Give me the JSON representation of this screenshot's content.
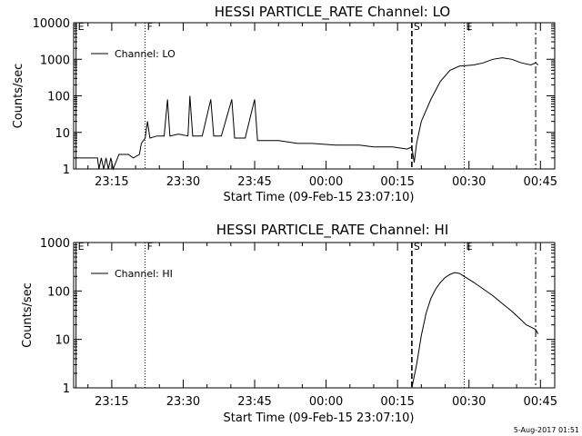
{
  "footer": {
    "timestamp": "5-Aug-2017 01:51"
  },
  "chart_data": [
    {
      "type": "line",
      "title": "HESSI PARTICLE_RATE Channel: LO",
      "xlabel": "Start Time (09-Feb-15 23:07:10)",
      "ylabel": "Counts/sec",
      "yscale": "log",
      "ylim": [
        1,
        10000
      ],
      "xlim_minutes": [
        0,
        101
      ],
      "xticks": [
        {
          "t": 8,
          "label": "23:15"
        },
        {
          "t": 23,
          "label": "23:30"
        },
        {
          "t": 38,
          "label": "23:45"
        },
        {
          "t": 53,
          "label": "00:00"
        },
        {
          "t": 68,
          "label": "00:15"
        },
        {
          "t": 83,
          "label": "00:30"
        },
        {
          "t": 98,
          "label": "00:45"
        }
      ],
      "yticks": [
        {
          "v": 1,
          "label": "1"
        },
        {
          "v": 10,
          "label": "10"
        },
        {
          "v": 100,
          "label": "100"
        },
        {
          "v": 1000,
          "label": "1000"
        },
        {
          "v": 10000,
          "label": "10000"
        }
      ],
      "legend": {
        "position": "top-left",
        "label": "Channel: LO"
      },
      "markers": [
        {
          "t": 0.5,
          "label": "E",
          "style": "solid"
        },
        {
          "t": 15,
          "label": "F",
          "style": "dotted"
        },
        {
          "t": 71,
          "label": "S",
          "style": "dashed"
        },
        {
          "t": 82,
          "label": "E",
          "style": "dotted"
        },
        {
          "t": 97,
          "label": "",
          "style": "dashdot"
        }
      ],
      "series": [
        {
          "name": "Channel: LO",
          "points": [
            [
              0,
              2
            ],
            [
              4,
              2
            ],
            [
              5,
              2
            ],
            [
              5.3,
              1
            ],
            [
              5.8,
              2
            ],
            [
              6.3,
              1
            ],
            [
              6.8,
              2
            ],
            [
              7.3,
              1
            ],
            [
              7.8,
              2
            ],
            [
              8.3,
              1
            ],
            [
              9.5,
              2.5
            ],
            [
              11.5,
              2.5
            ],
            [
              12.5,
              2
            ],
            [
              13.8,
              2.5
            ],
            [
              14.2,
              5
            ],
            [
              15,
              7
            ],
            [
              15.5,
              20
            ],
            [
              16,
              7
            ],
            [
              17.5,
              8
            ],
            [
              19,
              8
            ],
            [
              19.7,
              80
            ],
            [
              20.2,
              8
            ],
            [
              22,
              9
            ],
            [
              24,
              8
            ],
            [
              24.4,
              100
            ],
            [
              25,
              8
            ],
            [
              27,
              8
            ],
            [
              28.8,
              80
            ],
            [
              29.4,
              8
            ],
            [
              31,
              8
            ],
            [
              33.2,
              80
            ],
            [
              33.8,
              7
            ],
            [
              36,
              7
            ],
            [
              38,
              80
            ],
            [
              38.6,
              6
            ],
            [
              40,
              6
            ],
            [
              43,
              6
            ],
            [
              47,
              5
            ],
            [
              50,
              5
            ],
            [
              55,
              4.5
            ],
            [
              60,
              4.5
            ],
            [
              63,
              4
            ],
            [
              67,
              4
            ],
            [
              70,
              3.5
            ],
            [
              71,
              4
            ],
            [
              71.5,
              1.5
            ],
            [
              72,
              5
            ],
            [
              73,
              20
            ],
            [
              75,
              80
            ],
            [
              77,
              250
            ],
            [
              79,
              500
            ],
            [
              81,
              650
            ],
            [
              84,
              700
            ],
            [
              86,
              800
            ],
            [
              88,
              1000
            ],
            [
              90,
              1100
            ],
            [
              92,
              1000
            ],
            [
              94,
              800
            ],
            [
              96,
              700
            ],
            [
              97,
              800
            ],
            [
              97.5,
              700
            ]
          ]
        }
      ]
    },
    {
      "type": "line",
      "title": "HESSI PARTICLE_RATE Channel: HI",
      "xlabel": "Start Time (09-Feb-15 23:07:10)",
      "ylabel": "Counts/sec",
      "yscale": "log",
      "ylim": [
        1,
        1000
      ],
      "xlim_minutes": [
        0,
        101
      ],
      "xticks": [
        {
          "t": 8,
          "label": "23:15"
        },
        {
          "t": 23,
          "label": "23:30"
        },
        {
          "t": 38,
          "label": "23:45"
        },
        {
          "t": 53,
          "label": "00:00"
        },
        {
          "t": 68,
          "label": "00:15"
        },
        {
          "t": 83,
          "label": "00:30"
        },
        {
          "t": 98,
          "label": "00:45"
        }
      ],
      "yticks": [
        {
          "v": 1,
          "label": "1"
        },
        {
          "v": 10,
          "label": "10"
        },
        {
          "v": 100,
          "label": "100"
        },
        {
          "v": 1000,
          "label": "1000"
        }
      ],
      "legend": {
        "position": "top-left",
        "label": "Channel: HI"
      },
      "markers": [
        {
          "t": 0.5,
          "label": "E",
          "style": "solid"
        },
        {
          "t": 15,
          "label": "F",
          "style": "dotted"
        },
        {
          "t": 71,
          "label": "S",
          "style": "dashed"
        },
        {
          "t": 82,
          "label": "E",
          "style": "dotted"
        },
        {
          "t": 97,
          "label": "",
          "style": "dashdot"
        }
      ],
      "series": [
        {
          "name": "Channel: HI",
          "points": [
            [
              71,
              1
            ],
            [
              72,
              3
            ],
            [
              73,
              12
            ],
            [
              74,
              35
            ],
            [
              75,
              70
            ],
            [
              76,
              110
            ],
            [
              77,
              150
            ],
            [
              78,
              190
            ],
            [
              79,
              220
            ],
            [
              80,
              240
            ],
            [
              81,
              230
            ],
            [
              82,
              200
            ],
            [
              84,
              150
            ],
            [
              86,
              110
            ],
            [
              88,
              80
            ],
            [
              90,
              55
            ],
            [
              92,
              38
            ],
            [
              94,
              25
            ],
            [
              95,
              20
            ],
            [
              96,
              18
            ],
            [
              97,
              16
            ],
            [
              97.5,
              13
            ]
          ]
        }
      ]
    }
  ]
}
